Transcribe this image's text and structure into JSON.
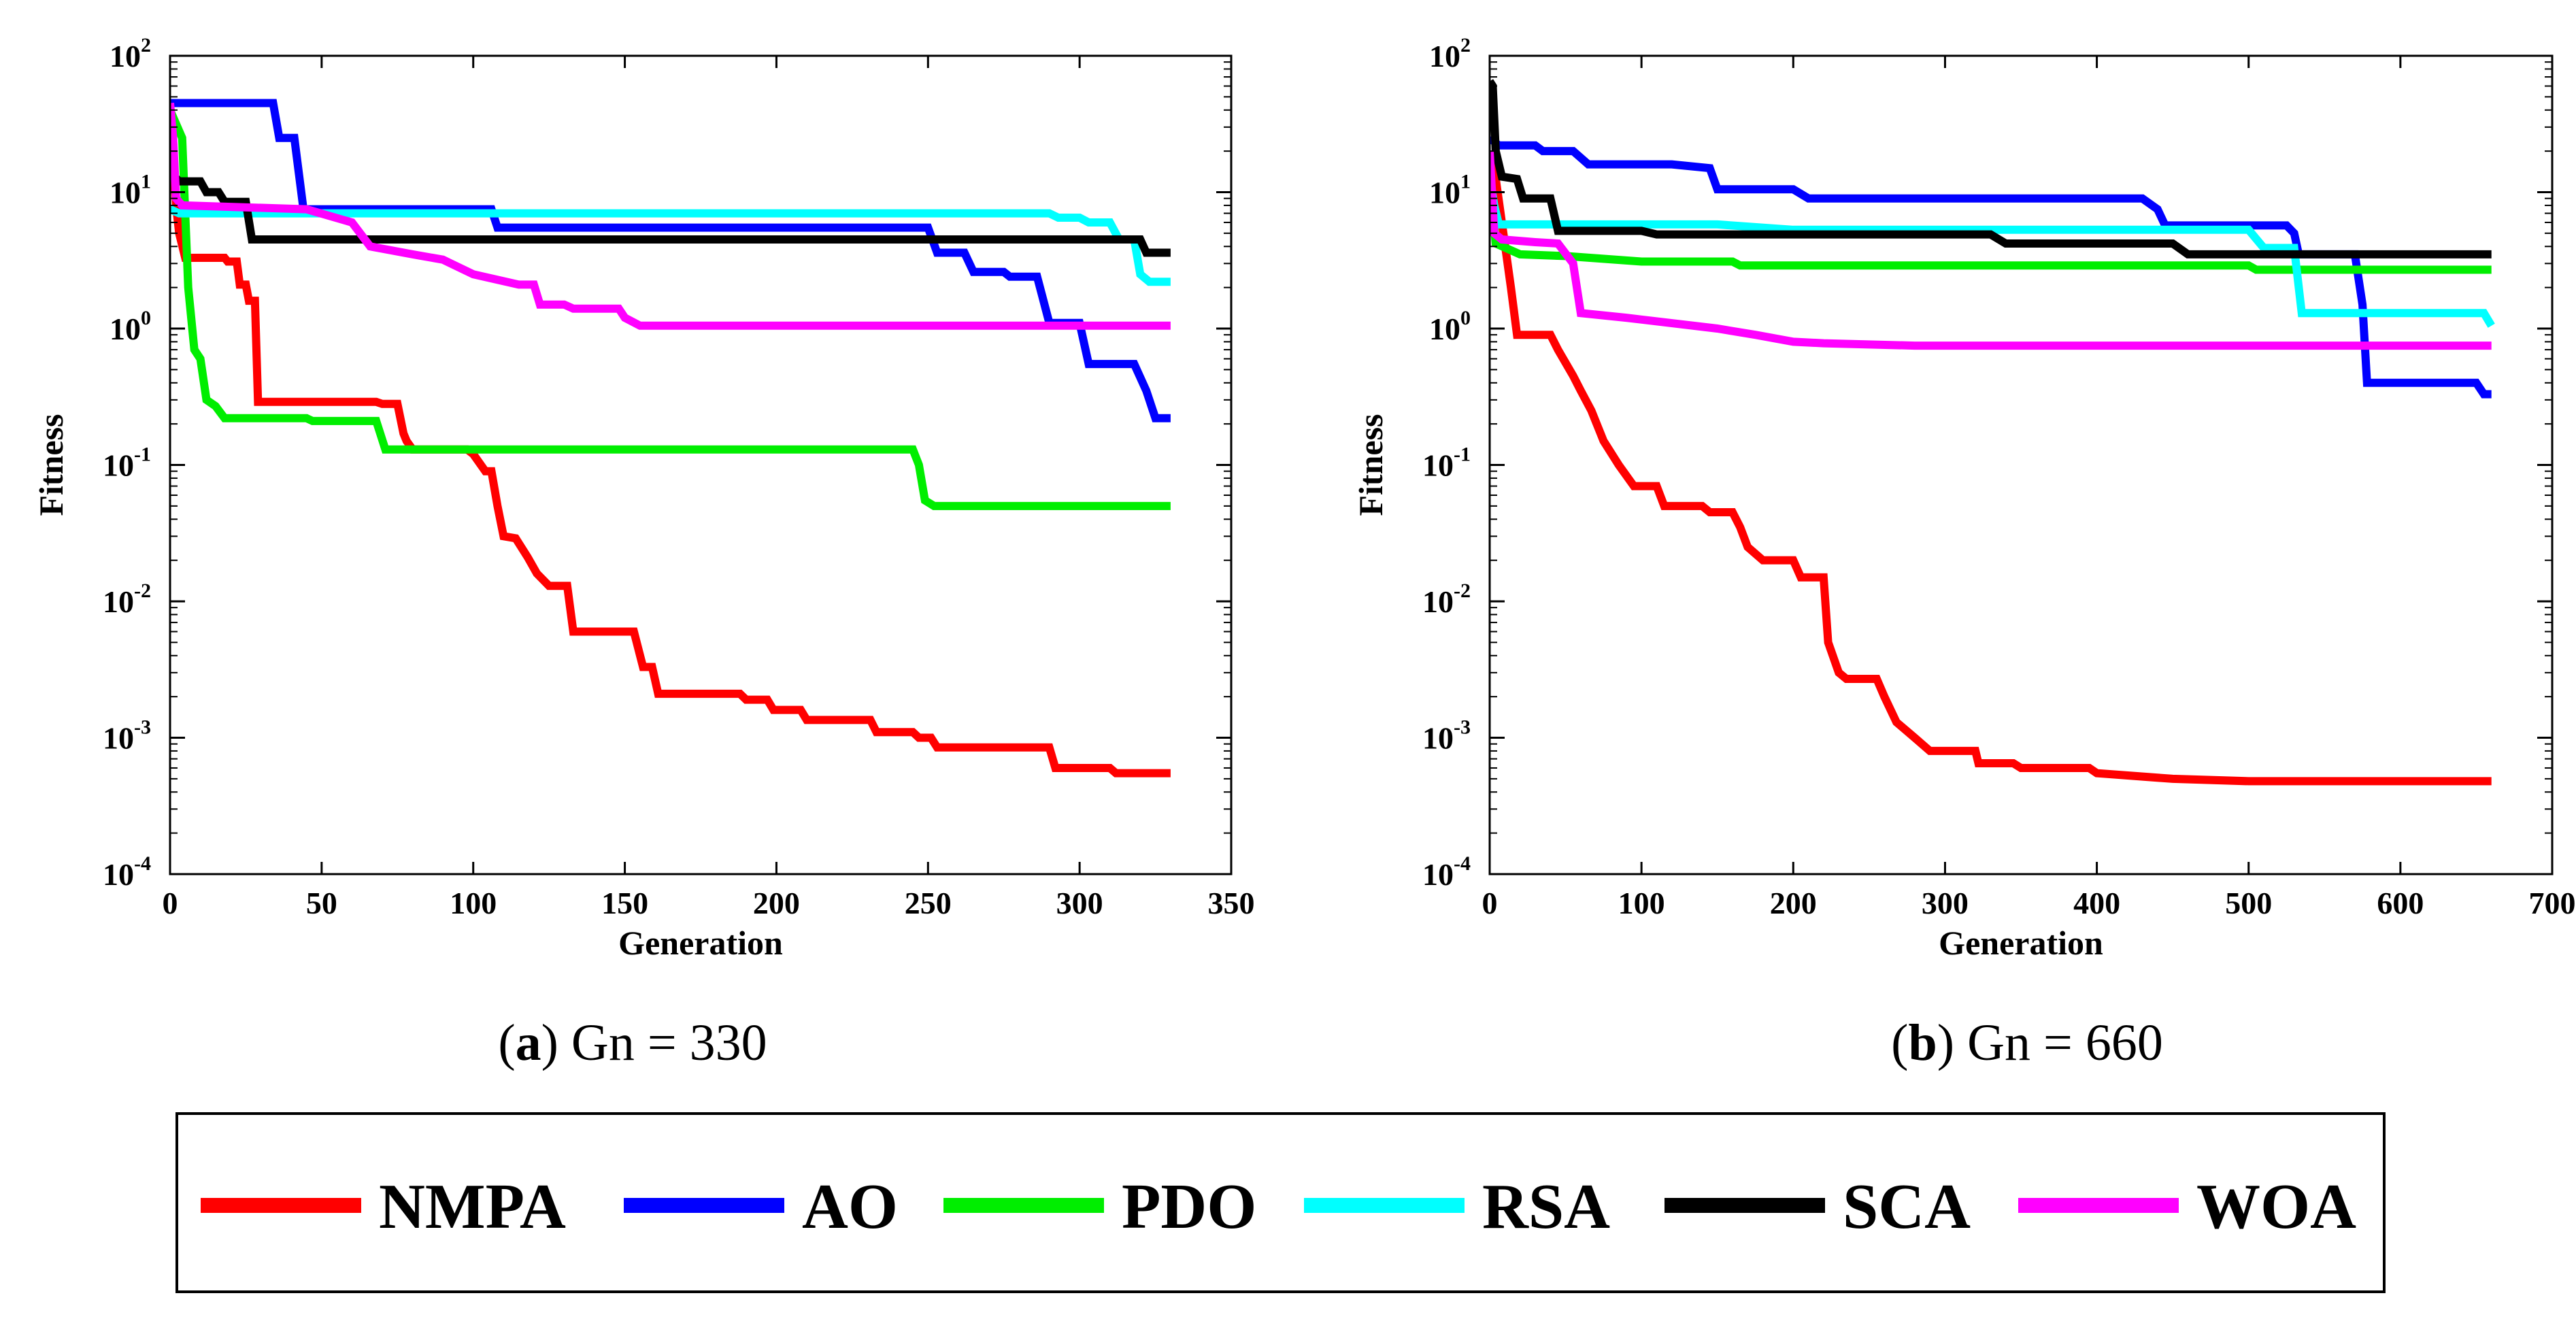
{
  "chart_data": [
    {
      "type": "line",
      "title": "",
      "caption": {
        "letter": "a",
        "text": ") Gn = 330"
      },
      "xlabel": "Generation",
      "ylabel": "Fitness",
      "yscale": "log",
      "xlim": [
        0,
        350
      ],
      "ylim_exponent": [
        -4,
        2
      ],
      "xticks": [
        "0",
        "50",
        "100",
        "150",
        "200",
        "250",
        "300",
        "350"
      ],
      "yticks": [
        {
          "base": "10",
          "exp": "2"
        },
        {
          "base": "10",
          "exp": "1"
        },
        {
          "base": "10",
          "exp": "0"
        },
        {
          "base": "10",
          "exp": "-1"
        },
        {
          "base": "10",
          "exp": "-2"
        },
        {
          "base": "10",
          "exp": "-3"
        },
        {
          "base": "10",
          "exp": "-4"
        }
      ],
      "series": [
        {
          "name": "NMPA",
          "color": "#ff0000",
          "points": [
            [
              0,
              45
            ],
            [
              2,
              8
            ],
            [
              3,
              5
            ],
            [
              5,
              3.3
            ],
            [
              18,
              3.3
            ],
            [
              19,
              3.1
            ],
            [
              22,
              3.1
            ],
            [
              23,
              2.1
            ],
            [
              25,
              2.1
            ],
            [
              26,
              1.6
            ],
            [
              28,
              1.6
            ],
            [
              29,
              0.29
            ],
            [
              68,
              0.29
            ],
            [
              70,
              0.28
            ],
            [
              75,
              0.28
            ],
            [
              77,
              0.17
            ],
            [
              78,
              0.15
            ],
            [
              80,
              0.13
            ],
            [
              98,
              0.13
            ],
            [
              100,
              0.12
            ],
            [
              104,
              0.09
            ],
            [
              106,
              0.09
            ],
            [
              108,
              0.05
            ],
            [
              110,
              0.03
            ],
            [
              114,
              0.029
            ],
            [
              118,
              0.021
            ],
            [
              121,
              0.016
            ],
            [
              125,
              0.013
            ],
            [
              131,
              0.013
            ],
            [
              133,
              0.006
            ],
            [
              153,
              0.006
            ],
            [
              156,
              0.0033
            ],
            [
              159,
              0.0033
            ],
            [
              161,
              0.0021
            ],
            [
              188,
              0.0021
            ],
            [
              190,
              0.0019
            ],
            [
              197,
              0.0019
            ],
            [
              199,
              0.0016
            ],
            [
              208,
              0.0016
            ],
            [
              210,
              0.00135
            ],
            [
              231,
              0.00135
            ],
            [
              233,
              0.0011
            ],
            [
              245,
              0.0011
            ],
            [
              247,
              0.001
            ],
            [
              251,
              0.001
            ],
            [
              253,
              0.00085
            ],
            [
              290,
              0.00085
            ],
            [
              292,
              0.0006
            ],
            [
              310,
              0.0006
            ],
            [
              312,
              0.00055
            ],
            [
              330,
              0.00055
            ]
          ]
        },
        {
          "name": "AO",
          "color": "#0000ff",
          "points": [
            [
              0,
              45
            ],
            [
              34,
              45
            ],
            [
              36,
              25
            ],
            [
              41,
              25
            ],
            [
              44,
              7.5
            ],
            [
              106,
              7.5
            ],
            [
              108,
              5.5
            ],
            [
              250,
              5.5
            ],
            [
              253,
              3.6
            ],
            [
              262,
              3.6
            ],
            [
              265,
              2.6
            ],
            [
              275,
              2.6
            ],
            [
              277,
              2.4
            ],
            [
              286,
              2.4
            ],
            [
              290,
              1.1
            ],
            [
              300,
              1.1
            ],
            [
              303,
              0.55
            ],
            [
              318,
              0.55
            ],
            [
              322,
              0.35
            ],
            [
              325,
              0.22
            ],
            [
              330,
              0.22
            ]
          ]
        },
        {
          "name": "PDO",
          "color": "#00ee00",
          "points": [
            [
              0,
              40
            ],
            [
              4,
              25
            ],
            [
              6,
              2
            ],
            [
              8,
              0.7
            ],
            [
              10,
              0.6
            ],
            [
              12,
              0.3
            ],
            [
              15,
              0.27
            ],
            [
              18,
              0.22
            ],
            [
              45,
              0.22
            ],
            [
              47,
              0.21
            ],
            [
              68,
              0.21
            ],
            [
              71,
              0.13
            ],
            [
              245,
              0.13
            ],
            [
              247,
              0.1
            ],
            [
              249,
              0.055
            ],
            [
              252,
              0.05
            ],
            [
              330,
              0.05
            ]
          ]
        },
        {
          "name": "RSA",
          "color": "#00ffff",
          "points": [
            [
              0,
              7.5
            ],
            [
              3,
              7
            ],
            [
              290,
              7
            ],
            [
              293,
              6.5
            ],
            [
              300,
              6.5
            ],
            [
              303,
              6
            ],
            [
              310,
              6
            ],
            [
              313,
              4.5
            ],
            [
              318,
              4.5
            ],
            [
              320,
              2.5
            ],
            [
              323,
              2.2
            ],
            [
              330,
              2.2
            ]
          ]
        },
        {
          "name": "SCA",
          "color": "#000000",
          "points": [
            [
              0,
              14
            ],
            [
              3,
              12
            ],
            [
              10,
              12
            ],
            [
              12,
              10
            ],
            [
              16,
              10
            ],
            [
              18,
              8.5
            ],
            [
              25,
              8.5
            ],
            [
              27,
              4.5
            ],
            [
              320,
              4.5
            ],
            [
              322,
              3.6
            ],
            [
              330,
              3.6
            ]
          ]
        },
        {
          "name": "WOA",
          "color": "#ff00ff",
          "points": [
            [
              0,
              45
            ],
            [
              1,
              25
            ],
            [
              2,
              9
            ],
            [
              4,
              8
            ],
            [
              20,
              7.8
            ],
            [
              45,
              7.5
            ],
            [
              60,
              6
            ],
            [
              66,
              4
            ],
            [
              80,
              3.5
            ],
            [
              90,
              3.2
            ],
            [
              100,
              2.5
            ],
            [
              115,
              2.1
            ],
            [
              120,
              2.1
            ],
            [
              122,
              1.5
            ],
            [
              130,
              1.5
            ],
            [
              133,
              1.4
            ],
            [
              148,
              1.4
            ],
            [
              150,
              1.2
            ],
            [
              155,
              1.05
            ],
            [
              330,
              1.05
            ]
          ]
        }
      ]
    },
    {
      "type": "line",
      "title": "",
      "caption": {
        "letter": "b",
        "text": ") Gn = 660"
      },
      "xlabel": "Generation",
      "ylabel": "Fitness",
      "yscale": "log",
      "xlim": [
        0,
        700
      ],
      "ylim_exponent": [
        -4,
        2
      ],
      "xticks": [
        "0",
        "100",
        "200",
        "300",
        "400",
        "500",
        "600",
        "700"
      ],
      "yticks": [
        {
          "base": "10",
          "exp": "2"
        },
        {
          "base": "10",
          "exp": "1"
        },
        {
          "base": "10",
          "exp": "0"
        },
        {
          "base": "10",
          "exp": "-1"
        },
        {
          "base": "10",
          "exp": "-2"
        },
        {
          "base": "10",
          "exp": "-3"
        },
        {
          "base": "10",
          "exp": "-4"
        }
      ],
      "series": [
        {
          "name": "NMPA",
          "color": "#ff0000",
          "points": [
            [
              0,
              20
            ],
            [
              3,
              15
            ],
            [
              8,
              6
            ],
            [
              14,
              2
            ],
            [
              18,
              0.9
            ],
            [
              40,
              0.9
            ],
            [
              45,
              0.7
            ],
            [
              55,
              0.45
            ],
            [
              60,
              0.35
            ],
            [
              67,
              0.25
            ],
            [
              75,
              0.15
            ],
            [
              85,
              0.1
            ],
            [
              95,
              0.07
            ],
            [
              110,
              0.07
            ],
            [
              115,
              0.05
            ],
            [
              140,
              0.05
            ],
            [
              145,
              0.045
            ],
            [
              160,
              0.045
            ],
            [
              165,
              0.035
            ],
            [
              170,
              0.025
            ],
            [
              180,
              0.02
            ],
            [
              200,
              0.02
            ],
            [
              205,
              0.015
            ],
            [
              220,
              0.015
            ],
            [
              223,
              0.005
            ],
            [
              230,
              0.003
            ],
            [
              235,
              0.0027
            ],
            [
              255,
              0.0027
            ],
            [
              260,
              0.002
            ],
            [
              268,
              0.0013
            ],
            [
              280,
              0.001
            ],
            [
              290,
              0.0008
            ],
            [
              320,
              0.0008
            ],
            [
              322,
              0.00065
            ],
            [
              345,
              0.00065
            ],
            [
              350,
              0.0006
            ],
            [
              395,
              0.0006
            ],
            [
              400,
              0.00055
            ],
            [
              450,
              0.0005
            ],
            [
              500,
              0.00048
            ],
            [
              660,
              0.00048
            ]
          ]
        },
        {
          "name": "AO",
          "color": "#0000ff",
          "points": [
            [
              0,
              25
            ],
            [
              6,
              22
            ],
            [
              30,
              22
            ],
            [
              35,
              20
            ],
            [
              55,
              20
            ],
            [
              65,
              16
            ],
            [
              120,
              16
            ],
            [
              145,
              15
            ],
            [
              150,
              10.5
            ],
            [
              200,
              10.5
            ],
            [
              210,
              9
            ],
            [
              430,
              9
            ],
            [
              440,
              7.5
            ],
            [
              445,
              5.7
            ],
            [
              525,
              5.7
            ],
            [
              530,
              5
            ],
            [
              533,
              3.5
            ],
            [
              570,
              3.5
            ],
            [
              575,
              1.5
            ],
            [
              578,
              0.4
            ],
            [
              650,
              0.4
            ],
            [
              655,
              0.33
            ],
            [
              660,
              0.33
            ]
          ]
        },
        {
          "name": "PDO",
          "color": "#00ee00",
          "points": [
            [
              0,
              12
            ],
            [
              4,
              4.2
            ],
            [
              20,
              3.5
            ],
            [
              50,
              3.4
            ],
            [
              100,
              3.1
            ],
            [
              160,
              3.1
            ],
            [
              165,
              2.9
            ],
            [
              500,
              2.9
            ],
            [
              505,
              2.7
            ],
            [
              660,
              2.7
            ]
          ]
        },
        {
          "name": "RSA",
          "color": "#00ffff",
          "points": [
            [
              0,
              13
            ],
            [
              3,
              8
            ],
            [
              6,
              5.8
            ],
            [
              150,
              5.8
            ],
            [
              200,
              5.3
            ],
            [
              500,
              5.3
            ],
            [
              510,
              3.9
            ],
            [
              530,
              3.9
            ],
            [
              535,
              1.3
            ],
            [
              655,
              1.3
            ],
            [
              660,
              1.05
            ]
          ]
        },
        {
          "name": "SCA",
          "color": "#000000",
          "points": [
            [
              0,
              65
            ],
            [
              2,
              60
            ],
            [
              4,
              20
            ],
            [
              8,
              13
            ],
            [
              18,
              12.5
            ],
            [
              22,
              9
            ],
            [
              40,
              9
            ],
            [
              45,
              5.2
            ],
            [
              100,
              5.2
            ],
            [
              110,
              4.9
            ],
            [
              330,
              4.9
            ],
            [
              340,
              4.2
            ],
            [
              450,
              4.2
            ],
            [
              460,
              3.5
            ],
            [
              660,
              3.5
            ]
          ]
        },
        {
          "name": "WOA",
          "color": "#ff00ff",
          "points": [
            [
              0,
              20
            ],
            [
              3,
              5
            ],
            [
              8,
              4.5
            ],
            [
              30,
              4.3
            ],
            [
              45,
              4.2
            ],
            [
              55,
              3
            ],
            [
              60,
              1.3
            ],
            [
              90,
              1.2
            ],
            [
              150,
              1
            ],
            [
              175,
              0.9
            ],
            [
              200,
              0.8
            ],
            [
              220,
              0.78
            ],
            [
              280,
              0.75
            ],
            [
              660,
              0.75
            ]
          ]
        }
      ]
    }
  ],
  "legend": {
    "items": [
      {
        "name": "NMPA",
        "color": "#ff0000"
      },
      {
        "name": "AO",
        "color": "#0000ff"
      },
      {
        "name": "PDO",
        "color": "#00ee00"
      },
      {
        "name": "RSA",
        "color": "#00ffff"
      },
      {
        "name": "SCA",
        "color": "#000000"
      },
      {
        "name": "WOA",
        "color": "#ff00ff"
      }
    ]
  }
}
